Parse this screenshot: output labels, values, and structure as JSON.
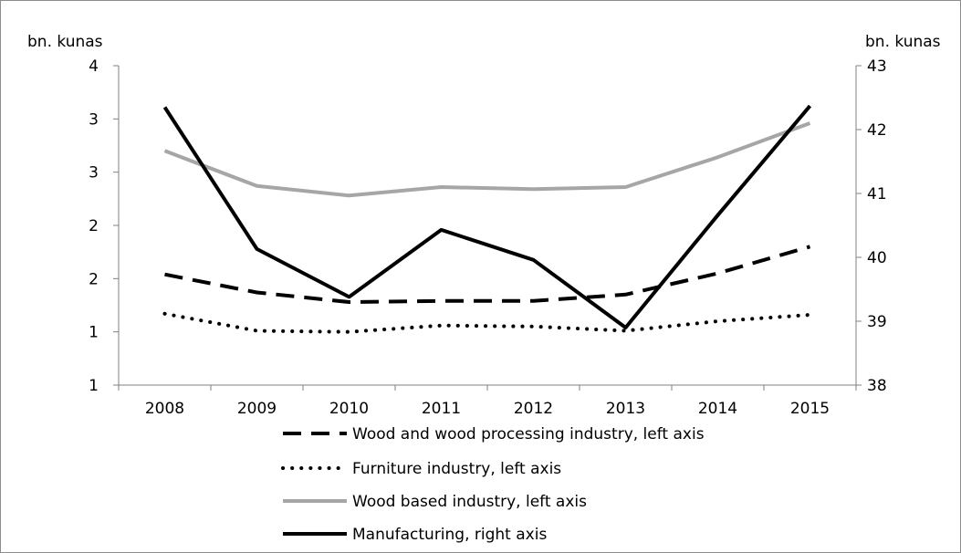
{
  "chart_data": {
    "type": "line",
    "left_axis": {
      "unit_label": "bn. kunas",
      "tick_labels": [
        "1",
        "1",
        "2",
        "2",
        "3",
        "3",
        "4"
      ],
      "ylim": [
        0.5,
        3.5
      ]
    },
    "right_axis": {
      "unit_label": "bn. kunas",
      "tick_labels": [
        "38",
        "39",
        "40",
        "41",
        "42",
        "43"
      ],
      "ylim": [
        38,
        43
      ]
    },
    "categories": [
      "2008",
      "2009",
      "2010",
      "2011",
      "2012",
      "2013",
      "2014",
      "2015"
    ],
    "series": [
      {
        "name": "Wood and wood processing industry, left axis",
        "axis": "left",
        "style": "dashed",
        "color": "#000000",
        "values": [
          1.54,
          1.37,
          1.28,
          1.29,
          1.29,
          1.35,
          1.55,
          1.8
        ]
      },
      {
        "name": "Furniture industry, left axis",
        "axis": "left",
        "style": "dotted",
        "color": "#000000",
        "values": [
          1.17,
          1.01,
          1.0,
          1.06,
          1.05,
          1.01,
          1.1,
          1.16
        ]
      },
      {
        "name": "Wood based industry, left axis",
        "axis": "left",
        "style": "solid",
        "color": "#a6a6a6",
        "values": [
          2.7,
          2.37,
          2.28,
          2.36,
          2.34,
          2.36,
          2.64,
          2.96
        ]
      },
      {
        "name": "Manufacturing, right axis",
        "axis": "right",
        "style": "solid",
        "color": "#000000",
        "values": [
          42.35,
          40.13,
          39.38,
          40.43,
          39.96,
          38.9,
          40.66,
          42.37
        ]
      }
    ],
    "legend_position": "bottom",
    "grid": false
  }
}
